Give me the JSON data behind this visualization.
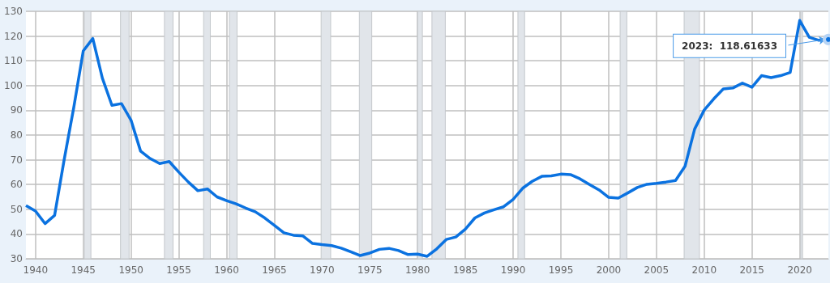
{
  "chart_data": {
    "type": "line",
    "x": [
      1939,
      1940,
      1941,
      1942,
      1943,
      1944,
      1945,
      1946,
      1947,
      1948,
      1949,
      1950,
      1951,
      1952,
      1953,
      1954,
      1955,
      1956,
      1957,
      1958,
      1959,
      1960,
      1961,
      1962,
      1963,
      1964,
      1965,
      1966,
      1967,
      1968,
      1969,
      1970,
      1971,
      1972,
      1973,
      1974,
      1975,
      1976,
      1977,
      1978,
      1979,
      1980,
      1981,
      1982,
      1983,
      1984,
      1985,
      1986,
      1987,
      1988,
      1989,
      1990,
      1991,
      1992,
      1993,
      1994,
      1995,
      1996,
      1997,
      1998,
      1999,
      2000,
      2001,
      2002,
      2003,
      2004,
      2005,
      2006,
      2007,
      2008,
      2009,
      2010,
      2011,
      2012,
      2013,
      2014,
      2015,
      2016,
      2017,
      2018,
      2019,
      2020,
      2021,
      2022,
      2023
    ],
    "series": [
      {
        "color": "#0b72e0",
        "values": [
          51.5,
          49.3,
          44.2,
          47.5,
          70,
          91,
          114,
          119,
          103,
          92,
          92.7,
          86,
          73.5,
          70.5,
          68.5,
          69.3,
          65,
          61,
          57.5,
          58.2,
          55,
          53.5,
          52.2,
          50.5,
          49,
          46.5,
          43.5,
          40.5,
          39.5,
          39.2,
          36.2,
          35.7,
          35.3,
          34.3,
          32.8,
          31.3,
          32.3,
          33.8,
          34.2,
          33.3,
          31.7,
          31.9,
          31,
          34,
          37.8,
          38.8,
          42,
          46.5,
          48.5,
          49.8,
          51,
          54,
          58.5,
          61.3,
          63.3,
          63.5,
          64.2,
          64,
          62.3,
          60,
          57.8,
          54.8,
          54.5,
          56.6,
          58.8,
          60.1,
          60.5,
          61,
          61.6,
          67.4,
          82.4,
          90.1,
          94.6,
          98.6,
          99,
          101,
          99.3,
          104,
          103.2,
          104,
          105.3,
          126.3,
          119.5,
          118.3,
          118.61633
        ]
      }
    ],
    "xlim": [
      1939,
      2023
    ],
    "xticks": [
      1940,
      1945,
      1950,
      1955,
      1960,
      1965,
      1970,
      1975,
      1980,
      1985,
      1990,
      1995,
      2000,
      2005,
      2010,
      2015,
      2020
    ],
    "ylim": [
      30,
      130
    ],
    "yticks": [
      30,
      40,
      50,
      60,
      70,
      80,
      90,
      100,
      110,
      120,
      130
    ],
    "grid": true,
    "marker": "none",
    "line_style": "solid",
    "bands": [
      {
        "axis": "x",
        "from": 1945.1,
        "to": 1945.8,
        "color": "#e1e5ea"
      },
      {
        "axis": "x",
        "from": 1948.9,
        "to": 1949.8,
        "color": "#e1e5ea"
      },
      {
        "axis": "x",
        "from": 1953.5,
        "to": 1954.4,
        "color": "#e1e5ea"
      },
      {
        "axis": "x",
        "from": 1957.6,
        "to": 1958.3,
        "color": "#e1e5ea"
      },
      {
        "axis": "x",
        "from": 1960.3,
        "to": 1961.1,
        "color": "#e1e5ea"
      },
      {
        "axis": "x",
        "from": 1969.9,
        "to": 1970.9,
        "color": "#e1e5ea"
      },
      {
        "axis": "x",
        "from": 1973.9,
        "to": 1975.2,
        "color": "#e1e5ea"
      },
      {
        "axis": "x",
        "from": 1980.0,
        "to": 1980.5,
        "color": "#e1e5ea"
      },
      {
        "axis": "x",
        "from": 1981.5,
        "to": 1982.9,
        "color": "#e1e5ea"
      },
      {
        "axis": "x",
        "from": 1990.5,
        "to": 1991.2,
        "color": "#e1e5ea"
      },
      {
        "axis": "x",
        "from": 2001.2,
        "to": 2001.9,
        "color": "#e1e5ea"
      },
      {
        "axis": "x",
        "from": 2007.9,
        "to": 2009.5,
        "color": "#e1e5ea"
      },
      {
        "axis": "x",
        "from": 2020.1,
        "to": 2020.3,
        "color": "#e1e5ea"
      }
    ],
    "annotations": [
      {
        "text": "2023:  118.61633",
        "x": 2023,
        "y": 118.61633
      }
    ]
  }
}
